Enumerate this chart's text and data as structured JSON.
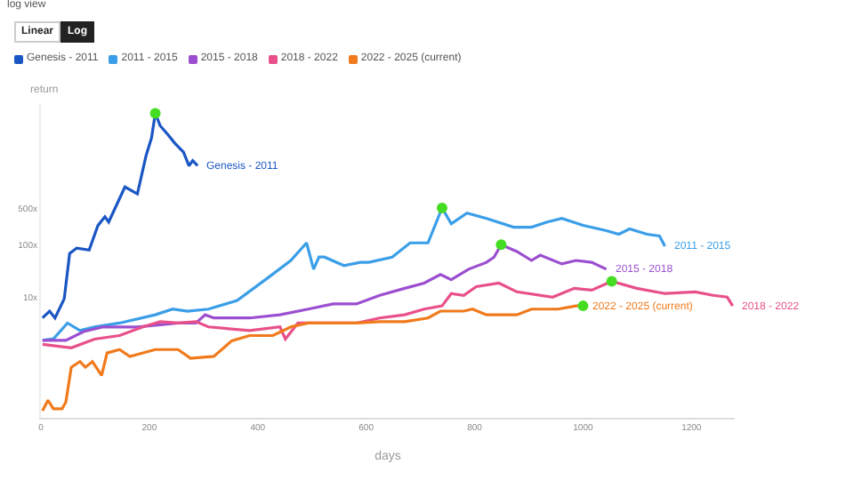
{
  "chart_data": {
    "type": "line",
    "title": "log view",
    "annotations": [
      "Linear",
      "Log"
    ],
    "xlabel": "days",
    "ylabel": "return",
    "log": "y",
    "grid": false,
    "legend": "top left",
    "line_style": "solid",
    "xlim": [
      0,
      1280
    ],
    "xticks": [
      0,
      200,
      400,
      600,
      800,
      1000,
      1200
    ],
    "ylim": [
      0.05,
      50000
    ],
    "yticks": [
      {
        "value": 10,
        "label": "10x"
      },
      {
        "value": 100,
        "label": "100x"
      },
      {
        "value": 500,
        "label": "500x"
      }
    ],
    "series": [
      {
        "name": "Genesis - 2011",
        "color": "#1a56c4",
        "x": [
          3,
          16,
          26,
          43,
          53,
          66,
          89,
          105,
          118,
          125,
          155,
          178,
          194,
          204,
          211,
          220,
          234,
          247,
          263,
          273,
          280,
          289
        ],
        "values": [
          4,
          5.4,
          4,
          9.3,
          68,
          86,
          79,
          230,
          340,
          270,
          1260,
          930,
          5000,
          10800,
          32000,
          18500,
          12600,
          8600,
          5800,
          3200,
          4000,
          3200
        ]
      },
      {
        "name": "2011 - 2015",
        "color": "#3a9ee8",
        "x": [
          3,
          23,
          49,
          72,
          99,
          145,
          211,
          243,
          270,
          309,
          362,
          418,
          461,
          490,
          503,
          513,
          523,
          559,
          589,
          605,
          648,
          681,
          697,
          714,
          740,
          757,
          786,
          822,
          872,
          905,
          934,
          961,
          1000,
          1043,
          1066,
          1086,
          1118,
          1141,
          1151
        ],
        "values": [
          1.5,
          1.6,
          3.2,
          2.3,
          2.7,
          3.2,
          4.6,
          5.9,
          5.4,
          5.9,
          8.6,
          23,
          50,
          108,
          34,
          58,
          58,
          40,
          46,
          46,
          58,
          108,
          108,
          108,
          500,
          250,
          400,
          316,
          215,
          215,
          270,
          316,
          233,
          185,
          158,
          200,
          158,
          147,
          93
        ]
      },
      {
        "name": "2015 - 2018",
        "color": "#9b4fd0",
        "x": [
          3,
          46,
          79,
          115,
          178,
          253,
          286,
          303,
          319,
          385,
          441,
          493,
          539,
          582,
          625,
          671,
          707,
          737,
          757,
          789,
          822,
          836,
          849,
          878,
          905,
          921,
          961,
          987,
          1016,
          1043
        ],
        "values": [
          1.5,
          1.5,
          2.2,
          2.7,
          2.7,
          3.2,
          3.2,
          4.6,
          4,
          4,
          4.6,
          5.9,
          7.4,
          7.4,
          10.8,
          14.7,
          18.5,
          27,
          21.5,
          34,
          46,
          58,
          100,
          74,
          50,
          63,
          43,
          50,
          46,
          34
        ]
      },
      {
        "name": "2018 - 2022",
        "color": "#e8508a",
        "x": [
          3,
          56,
          99,
          145,
          188,
          220,
          253,
          286,
          309,
          385,
          441,
          451,
          474,
          539,
          582,
          625,
          671,
          707,
          740,
          757,
          780,
          803,
          845,
          878,
          944,
          984,
          1016,
          1053,
          1099,
          1151,
          1207,
          1240,
          1266,
          1276
        ],
        "values": [
          1.26,
          1.08,
          1.58,
          1.85,
          2.7,
          3.4,
          3.2,
          3.4,
          2.7,
          2.3,
          2.7,
          1.58,
          3.2,
          3.2,
          3.2,
          4,
          4.6,
          5.9,
          6.8,
          11.7,
          10.8,
          15.8,
          18.5,
          12.6,
          10,
          14.7,
          13.6,
          20,
          14.7,
          11.7,
          12.6,
          10.8,
          10,
          6.8
        ]
      },
      {
        "name": "2022 - 2025 (current)",
        "color": "#f07a1c",
        "x": [
          3,
          13,
          23,
          39,
          46,
          56,
          72,
          82,
          95,
          112,
          122,
          145,
          164,
          211,
          253,
          276,
          319,
          352,
          385,
          428,
          461,
          493,
          539,
          582,
          625,
          671,
          714,
          737,
          780,
          796,
          822,
          878,
          905,
          954,
          987,
          1000
        ],
        "values": [
          0.068,
          0.108,
          0.074,
          0.074,
          0.1,
          0.46,
          0.59,
          0.46,
          0.59,
          0.32,
          0.86,
          1,
          0.74,
          1,
          1,
          0.68,
          0.74,
          1.47,
          1.85,
          1.85,
          2.7,
          3.2,
          3.2,
          3.2,
          3.4,
          3.4,
          4,
          5.4,
          5.4,
          5.9,
          4.6,
          4.6,
          5.9,
          5.9,
          6.8,
          6.8
        ]
      },
      {
        "type": "scatter",
        "color": "#44dd22",
        "x": [
          211,
          740,
          849,
          1053,
          1000
        ],
        "values": [
          32000,
          500,
          100,
          20,
          6.8
        ]
      }
    ]
  }
}
